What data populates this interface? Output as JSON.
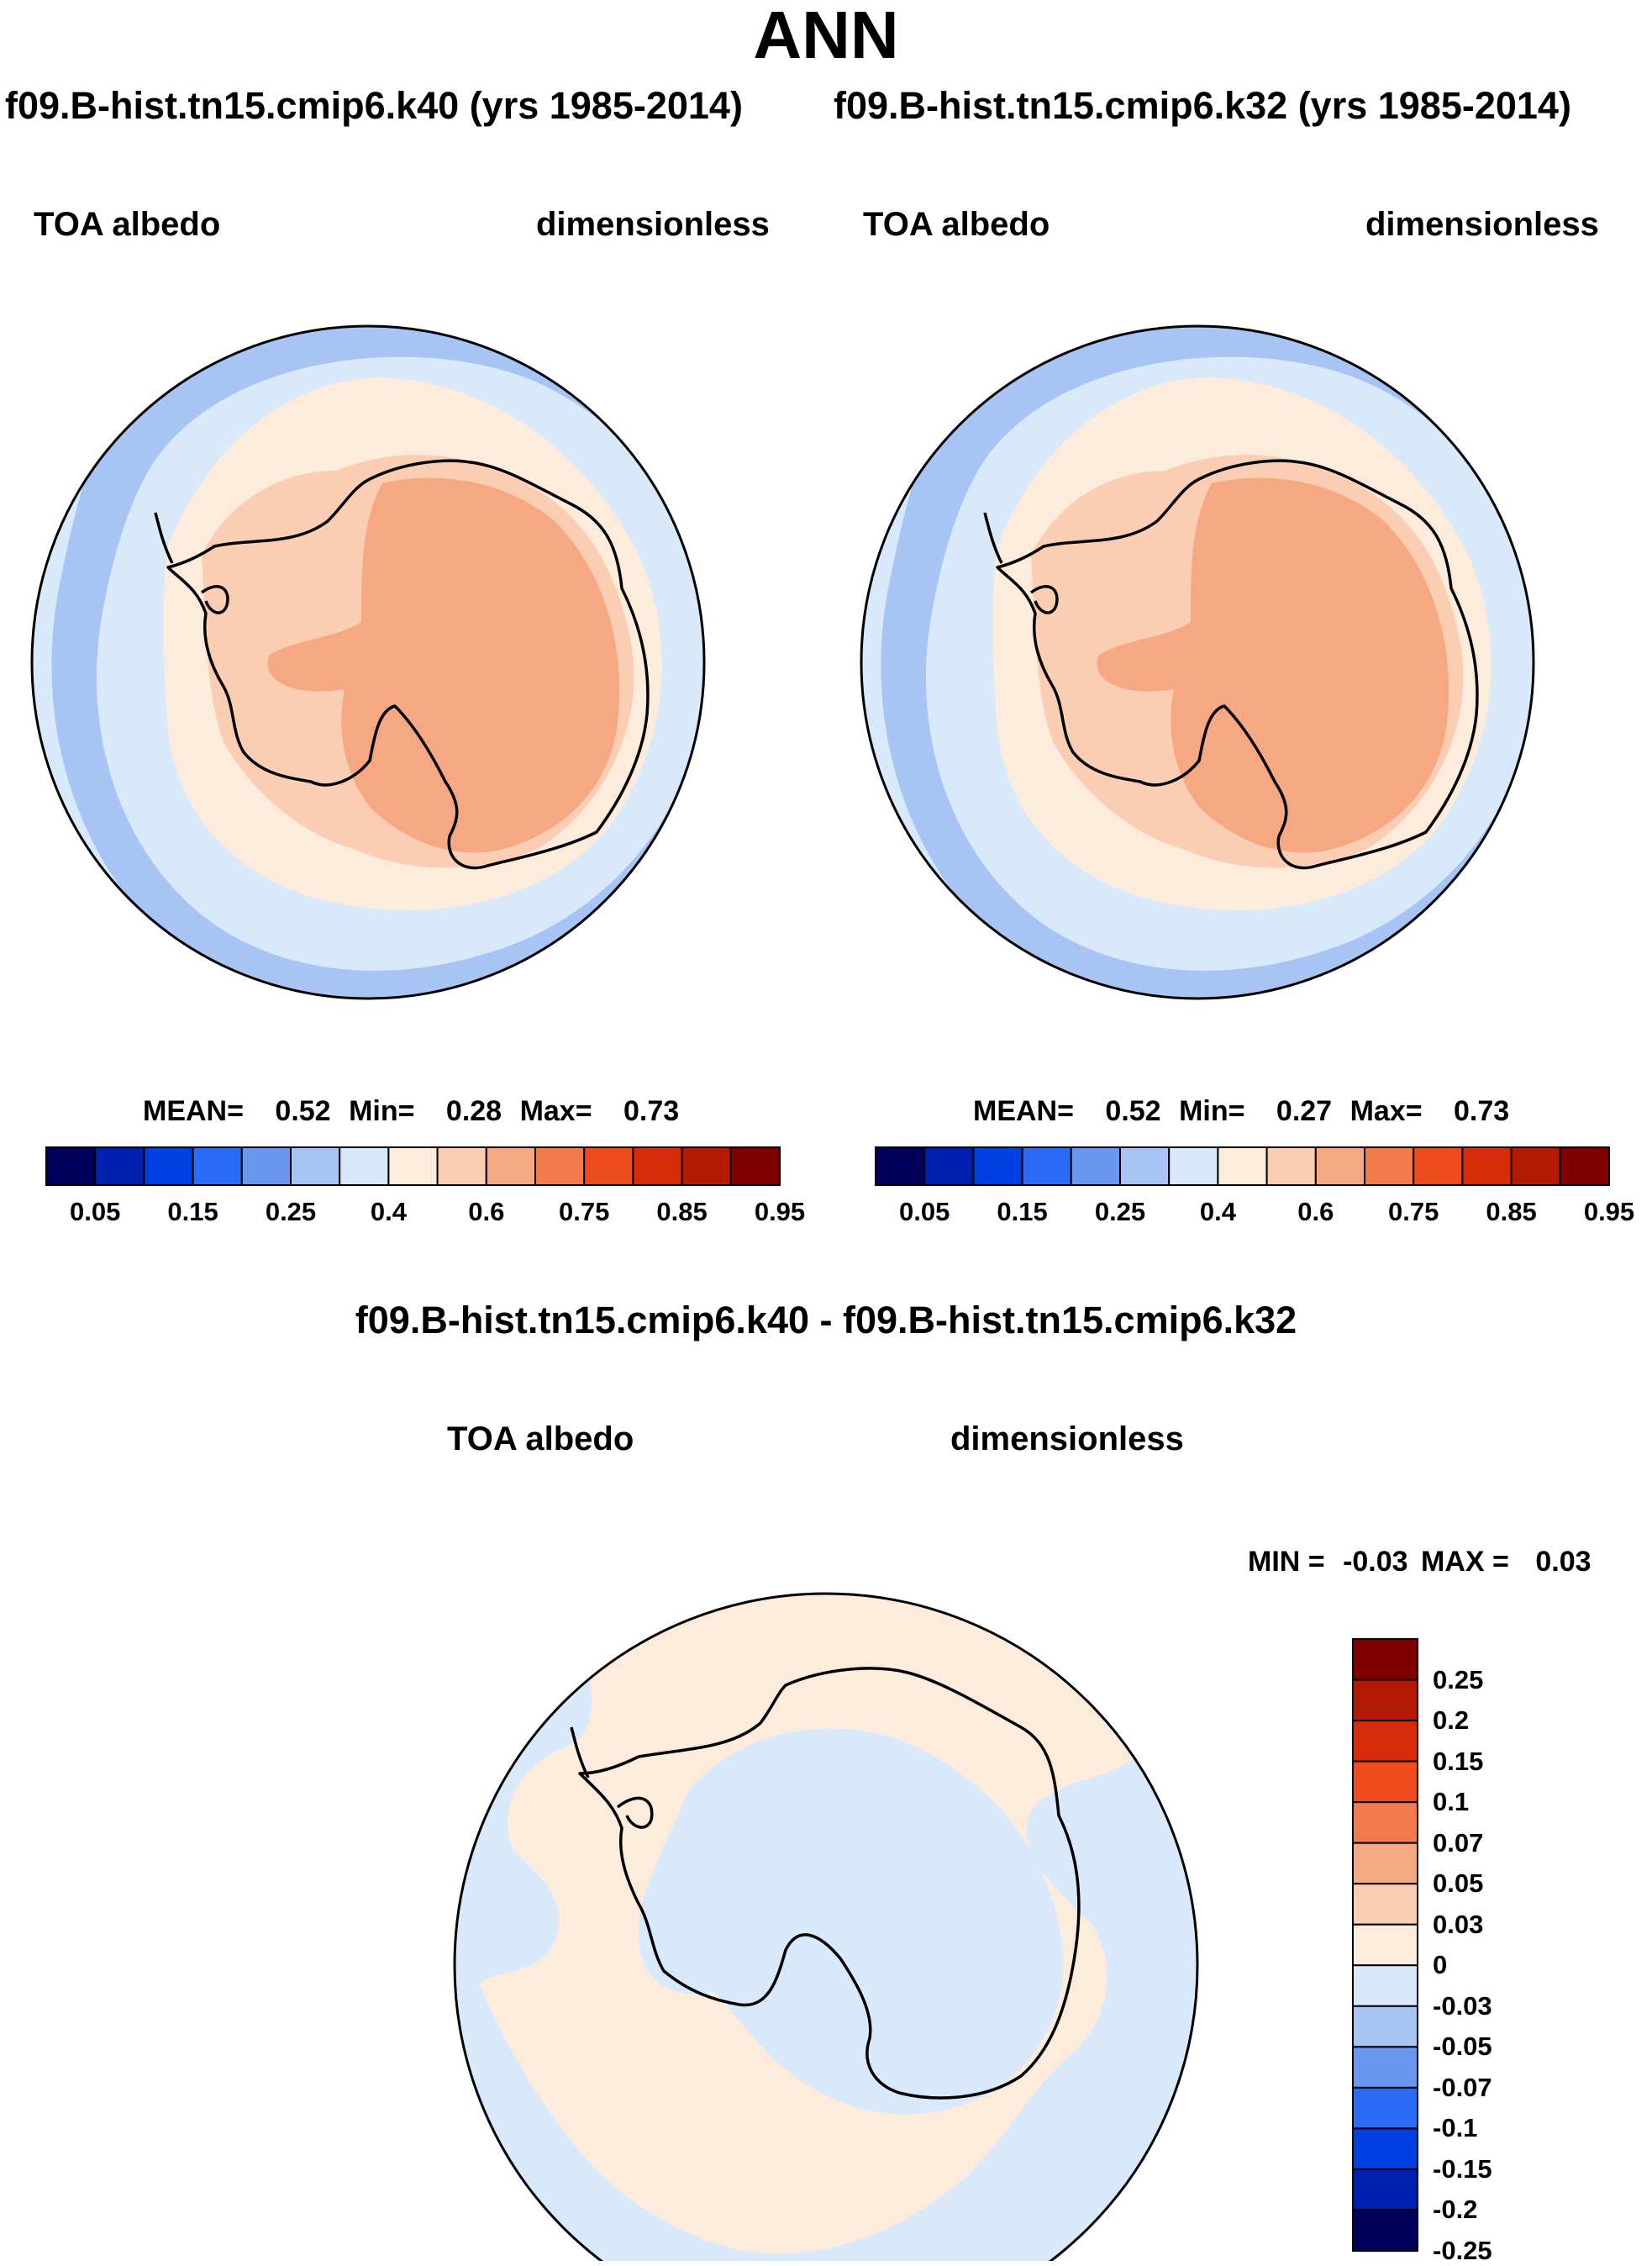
{
  "title": "ANN",
  "case_titles": [
    "f09.B-hist.tn15.cmip6.k40 (yrs 1985-2014)",
    "f09.B-hist.tn15.cmip6.k32 (yrs 1985-2014)"
  ],
  "diff_title": "f09.B-hist.tn15.cmip6.k40 - f09.B-hist.tn15.cmip6.k32",
  "colors": {
    "abs_scale": [
      "#00005c",
      "#0020b0",
      "#0040e0",
      "#2a6cf5",
      "#6a98f0",
      "#a8c4f4",
      "#d8e9fb",
      "#fdebdc",
      "#fbcdb2",
      "#f6a882",
      "#f27b4e",
      "#ee4b1e",
      "#d62c0a",
      "#b31a03",
      "#800000"
    ],
    "diff_scale": [
      "#00005c",
      "#0020b0",
      "#0040e0",
      "#2a6cf5",
      "#6a98f0",
      "#a8c4f4",
      "#d8e9fb",
      "#fdebdc",
      "#fbcdb2",
      "#f6a882",
      "#f27b4e",
      "#ee4b1e",
      "#d62c0a",
      "#b31a03",
      "#800000"
    ],
    "ocean_band": "#d8e9fb",
    "storm_band": "#a8c4f4",
    "ice_edge": "#fdebdc",
    "coastal": "#fbcdb2",
    "plateau": "#f6a882"
  },
  "chart_data": [
    {
      "type": "heatmap",
      "projection": "south-polar-stereographic",
      "title": "f09.B-hist.tn15.cmip6.k40 (yrs 1985-2014)",
      "left_label": "TOA albedo",
      "right_label": "dimensionless",
      "stats": {
        "mean_label": "MEAN=",
        "mean": "0.52",
        "min_label": "Min=",
        "min": "0.28",
        "max_label": "Max=",
        "max": "0.73"
      },
      "colorbar": {
        "orientation": "horizontal",
        "levels": [
          0.05,
          0.1,
          0.15,
          0.2,
          0.25,
          0.3,
          0.4,
          0.5,
          0.6,
          0.7,
          0.75,
          0.8,
          0.85,
          0.9,
          0.95
        ],
        "tick_labels": [
          "0.05",
          "0.15",
          "0.25",
          "0.4",
          "0.6",
          "0.75",
          "0.85",
          "0.95"
        ]
      }
    },
    {
      "type": "heatmap",
      "projection": "south-polar-stereographic",
      "title": "f09.B-hist.tn15.cmip6.k32 (yrs 1985-2014)",
      "left_label": "TOA albedo",
      "right_label": "dimensionless",
      "stats": {
        "mean_label": "MEAN=",
        "mean": "0.52",
        "min_label": "Min=",
        "min": "0.27",
        "max_label": "Max=",
        "max": "0.73"
      },
      "colorbar": {
        "orientation": "horizontal",
        "levels": [
          0.05,
          0.1,
          0.15,
          0.2,
          0.25,
          0.3,
          0.4,
          0.5,
          0.6,
          0.7,
          0.75,
          0.8,
          0.85,
          0.9,
          0.95
        ],
        "tick_labels": [
          "0.05",
          "0.15",
          "0.25",
          "0.4",
          "0.6",
          "0.75",
          "0.85",
          "0.95"
        ]
      }
    },
    {
      "type": "heatmap",
      "projection": "south-polar-stereographic",
      "title": "f09.B-hist.tn15.cmip6.k40 - f09.B-hist.tn15.cmip6.k32",
      "left_label": "TOA albedo",
      "right_label": "dimensionless",
      "stats": {
        "min_label": "MIN =",
        "min": "-0.03",
        "max_label": "MAX =",
        "max": "0.03"
      },
      "colorbar": {
        "orientation": "vertical",
        "tick_labels": [
          "0.25",
          "0.2",
          "0.15",
          "0.1",
          "0.07",
          "0.05",
          "0.03",
          "0",
          "-0.03",
          "-0.05",
          "-0.07",
          "-0.1",
          "-0.15",
          "-0.2",
          "-0.25"
        ]
      }
    }
  ]
}
